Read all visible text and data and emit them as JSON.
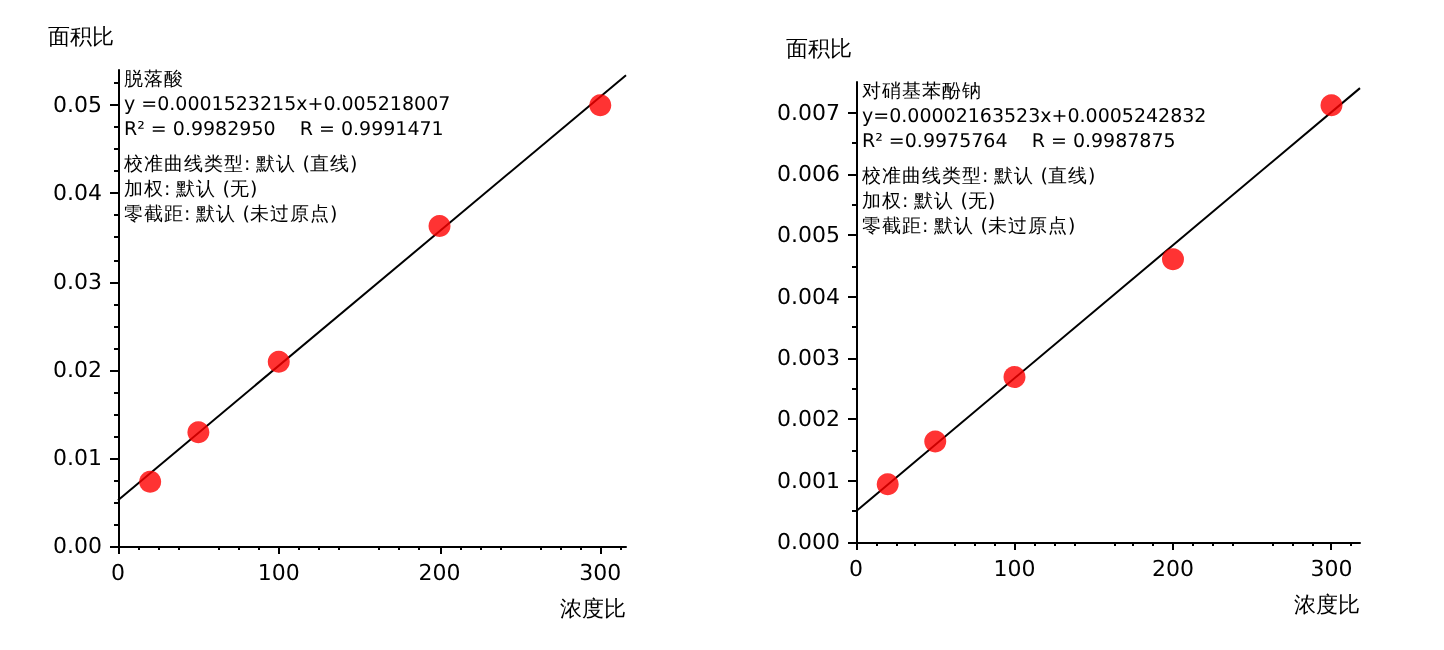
{
  "chart_data": [
    {
      "type": "scatter",
      "xlabel": "浓度比",
      "ylabel": "面积比",
      "x": [
        20,
        50,
        100,
        200,
        300
      ],
      "marker": "circle",
      "series": [
        {
          "color": "#ff0000",
          "values": [
            0.0073,
            0.0129,
            0.0209,
            0.0363,
            0.05
          ]
        },
        {
          "type": "line",
          "color": "#000000",
          "x": [
            0,
            316
          ],
          "values": [
            0.0052,
            0.0534
          ],
          "marker": "none",
          "line_style": "solid"
        }
      ],
      "annotations": [
        "脱落酸",
        "y =0.0001523215x+0.005218007",
        "R² = 0.9982950    R = 0.9991471",
        "校准曲线类型: 默认 (直线)",
        "加权: 默认 (无)",
        "零截距: 默认 (未过原点)"
      ],
      "xlim": [
        0,
        316
      ],
      "xticks": [
        0,
        100,
        200,
        300
      ],
      "ylim": [
        0,
        0.054
      ],
      "yticks": [
        {
          "value": 0,
          "label": "0.00"
        },
        0.01,
        0.02,
        0.03,
        0.04,
        0.05
      ]
    },
    {
      "type": "scatter",
      "xlabel": "浓度比",
      "ylabel": "面积比",
      "x": [
        20,
        50,
        100,
        200,
        300
      ],
      "marker": "circle",
      "series": [
        {
          "color": "#ff0000",
          "values": [
            0.00094,
            0.00164,
            0.00269,
            0.00461,
            0.00712
          ]
        },
        {
          "type": "line",
          "color": "#000000",
          "x": [
            0,
            318
          ],
          "values": [
            0.0005,
            0.0074
          ],
          "marker": "none",
          "line_style": "solid"
        }
      ],
      "annotations": [
        "对硝基苯酚钠",
        "y=0.00002163523x+0.0005242832",
        "R² =0.9975764    R = 0.9987875",
        "校准曲线类型: 默认 (直线)",
        "加权: 默认 (无)",
        "零截距: 默认 (未过原点)"
      ],
      "xlim": [
        0,
        318
      ],
      "xticks": [
        0,
        100,
        200,
        300
      ],
      "ylim": [
        0,
        0.0075
      ],
      "yticks": [
        {
          "value": 0,
          "label": "0.000"
        },
        0.001,
        0.002,
        0.003,
        0.004,
        0.005,
        0.006,
        0.007
      ]
    }
  ]
}
